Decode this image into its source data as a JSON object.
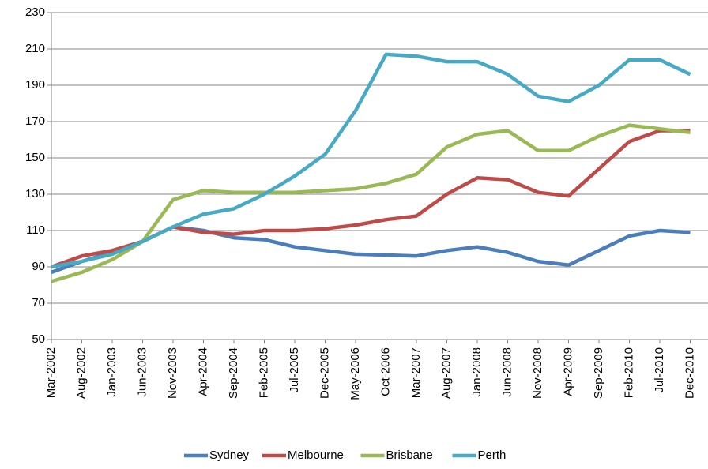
{
  "chart_data": {
    "type": "line",
    "categories": [
      "Mar-2002",
      "Aug-2002",
      "Jan-2003",
      "Jun-2003",
      "Nov-2003",
      "Apr-2004",
      "Sep-2004",
      "Feb-2005",
      "Jul-2005",
      "Dec-2005",
      "May-2006",
      "Oct-2006",
      "Mar-2007",
      "Aug-2007",
      "Jan-2008",
      "Jun-2008",
      "Nov-2008",
      "Apr-2009",
      "Sep-2009",
      "Feb-2010",
      "Jul-2010",
      "Dec-2010"
    ],
    "series": [
      {
        "name": "Sydney",
        "color": "#4a7ebb",
        "values": [
          87,
          93,
          98,
          104,
          112,
          110,
          106,
          105,
          101,
          99,
          97,
          96.5,
          96,
          99,
          101,
          98,
          93,
          91,
          99,
          107,
          110,
          109
        ]
      },
      {
        "name": "Melbourne",
        "color": "#be4b48",
        "values": [
          90,
          96,
          99,
          104,
          112,
          109,
          108,
          110,
          110,
          111,
          113,
          116,
          118,
          130,
          139,
          138,
          131,
          129,
          144,
          159,
          165,
          165
        ]
      },
      {
        "name": "Brisbane",
        "color": "#98b954",
        "values": [
          82,
          87,
          94,
          104,
          127,
          132,
          131,
          131,
          131,
          132,
          133,
          136,
          141,
          156,
          163,
          165,
          154,
          154,
          162,
          168,
          166,
          164
        ]
      },
      {
        "name": "Perth",
        "color": "#46aac5",
        "values": [
          90,
          93,
          97,
          104,
          112,
          119,
          122,
          130,
          140,
          152,
          176,
          207,
          206,
          203,
          203,
          196,
          184,
          181,
          190,
          204,
          204,
          196
        ]
      }
    ],
    "ylim": [
      50,
      230
    ],
    "yticks": [
      50,
      70,
      90,
      110,
      130,
      150,
      170,
      190,
      210,
      230
    ],
    "grid": true,
    "legend": "bottom"
  }
}
